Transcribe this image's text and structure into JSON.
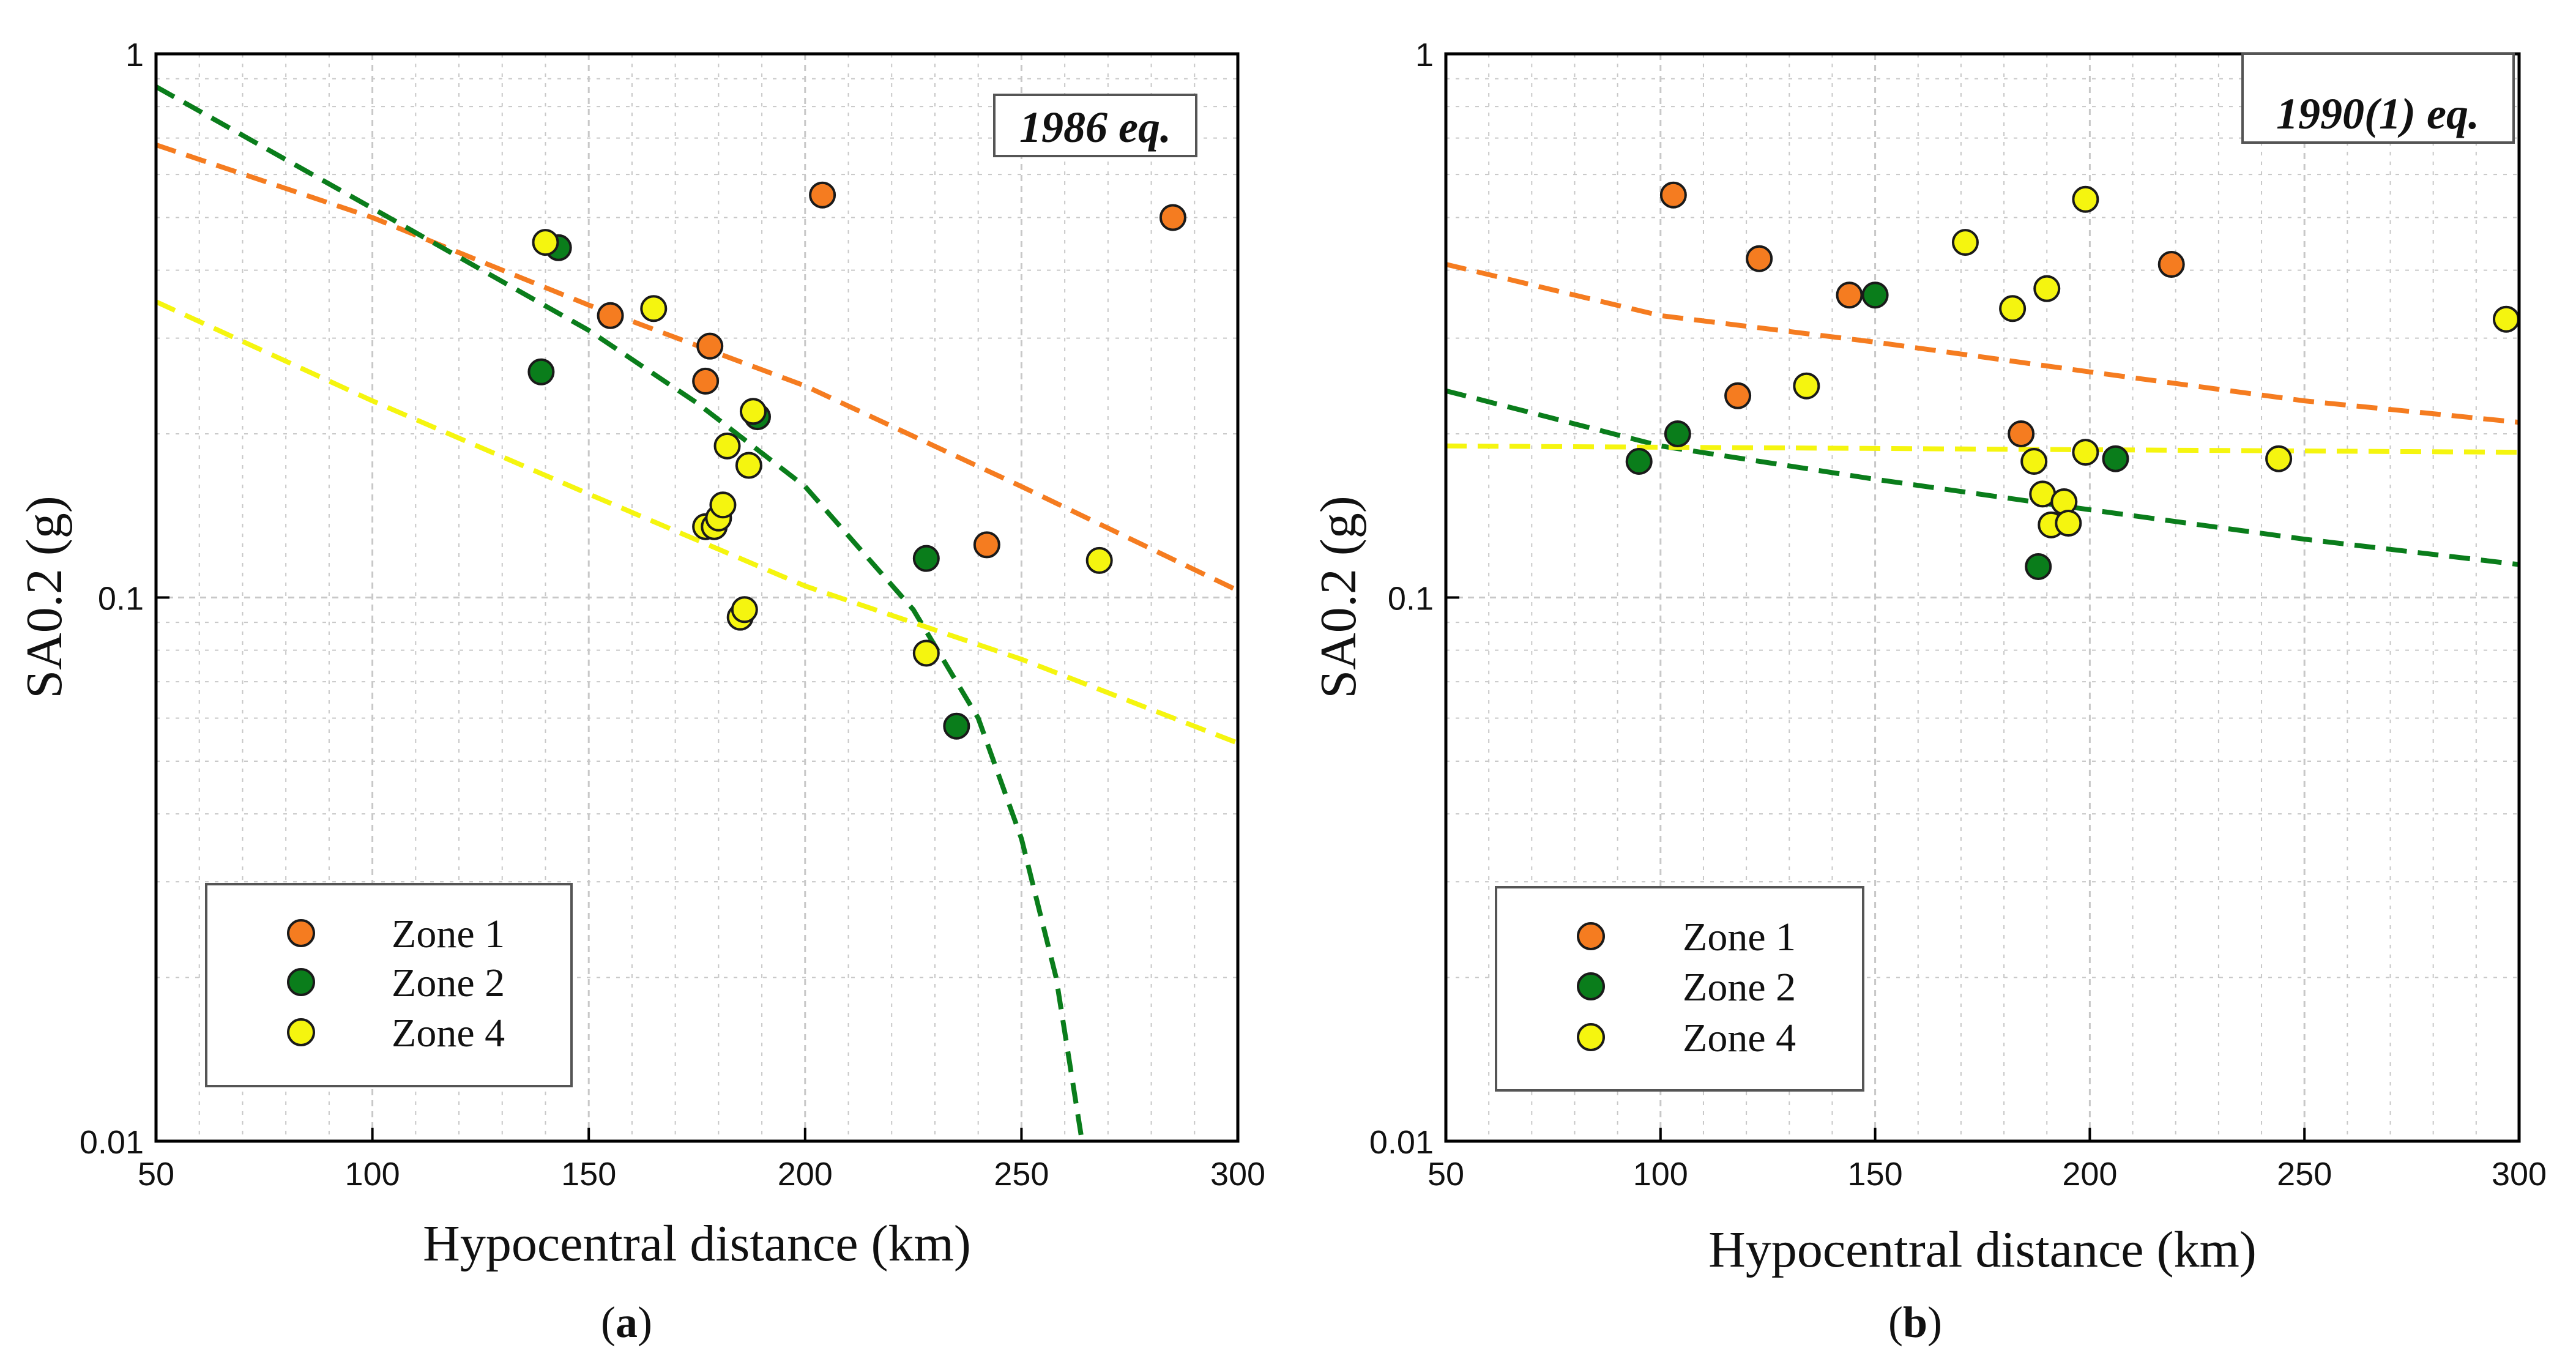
{
  "figure": {
    "colors": {
      "zone1": "#f57c20",
      "zone2": "#0a7d1b",
      "zone4": "#f5f50f",
      "marker_edge": "#1a1a1a",
      "grid": "#c8c8c8"
    }
  },
  "chart_data": [
    {
      "type": "scatter",
      "panel_label": "a",
      "annotation": "1986 eq.",
      "xlabel": "Hypocentral distance (km)",
      "ylabel": "SA0.2 (g)",
      "xlim": [
        50,
        300
      ],
      "ylim": [
        0.01,
        1
      ],
      "yscale": "log",
      "xticks": [
        50,
        100,
        150,
        200,
        250,
        300
      ],
      "yticks": [
        {
          "value": 0.01,
          "label": "0.01"
        },
        {
          "value": 0.1,
          "label": "0.1"
        },
        {
          "value": 1,
          "label": "1"
        }
      ],
      "grid": true,
      "legend_position": "bottom-left",
      "legend": [
        "Zone 1",
        "Zone 2",
        "Zone 4"
      ],
      "series": [
        {
          "name": "Zone 1",
          "color_key": "zone1",
          "x": [
            155,
            178,
            177,
            204,
            242,
            285
          ],
          "y": [
            0.33,
            0.29,
            0.25,
            0.55,
            0.125,
            0.5
          ]
        },
        {
          "name": "Zone 2",
          "color_key": "zone2",
          "x": [
            143,
            139,
            189,
            228,
            235
          ],
          "y": [
            0.44,
            0.26,
            0.215,
            0.118,
            0.058
          ]
        },
        {
          "name": "Zone 4",
          "color_key": "zone4",
          "x": [
            140,
            165,
            182,
            187,
            188,
            177,
            179,
            180,
            181,
            185,
            186,
            228,
            268
          ],
          "y": [
            0.45,
            0.34,
            0.19,
            0.175,
            0.22,
            0.135,
            0.135,
            0.14,
            0.148,
            0.092,
            0.095,
            0.079,
            0.117
          ]
        }
      ],
      "curves": [
        {
          "name": "Zone 1 model",
          "color_key": "zone1",
          "x": [
            50,
            100,
            150,
            200,
            250,
            300
          ],
          "y": [
            0.68,
            0.5,
            0.345,
            0.245,
            0.16,
            0.103
          ]
        },
        {
          "name": "Zone 2 model",
          "color_key": "zone2",
          "x": [
            50,
            100,
            150,
            175,
            200,
            225,
            240,
            250,
            258,
            264
          ],
          "y": [
            0.87,
            0.52,
            0.31,
            0.228,
            0.16,
            0.095,
            0.06,
            0.036,
            0.02,
            0.01
          ]
        },
        {
          "name": "Zone 4 model",
          "color_key": "zone4",
          "x": [
            50,
            100,
            150,
            200,
            250,
            300
          ],
          "y": [
            0.35,
            0.23,
            0.155,
            0.105,
            0.077,
            0.054
          ]
        }
      ]
    },
    {
      "type": "scatter",
      "panel_label": "b",
      "annotation": "1990(1) eq.",
      "xlabel": "Hypocentral distance (km)",
      "ylabel": "SA0.2 (g)",
      "xlim": [
        50,
        300
      ],
      "ylim": [
        0.01,
        1
      ],
      "yscale": "log",
      "xticks": [
        50,
        100,
        150,
        200,
        250,
        300
      ],
      "yticks": [
        {
          "value": 0.01,
          "label": "0.01"
        },
        {
          "value": 0.1,
          "label": "0.1"
        },
        {
          "value": 1,
          "label": "1"
        }
      ],
      "grid": true,
      "legend_position": "bottom-left",
      "legend": [
        "Zone 1",
        "Zone 2",
        "Zone 4"
      ],
      "series": [
        {
          "name": "Zone 1",
          "color_key": "zone1",
          "x": [
            103,
            123,
            144,
            118,
            184,
            219
          ],
          "y": [
            0.55,
            0.42,
            0.36,
            0.235,
            0.2,
            0.41
          ]
        },
        {
          "name": "Zone 2",
          "color_key": "zone2",
          "x": [
            150,
            104,
            95,
            206,
            188
          ],
          "y": [
            0.36,
            0.2,
            0.178,
            0.18,
            0.114
          ]
        },
        {
          "name": "Zone 4",
          "color_key": "zone4",
          "x": [
            171,
            182,
            190,
            199,
            134,
            187,
            189,
            199,
            194,
            191,
            195,
            244,
            297
          ],
          "y": [
            0.45,
            0.34,
            0.37,
            0.54,
            0.245,
            0.178,
            0.155,
            0.185,
            0.15,
            0.136,
            0.137,
            0.18,
            0.325
          ]
        }
      ],
      "curves": [
        {
          "name": "Zone 1 model",
          "color_key": "zone1",
          "x": [
            50,
            100,
            150,
            200,
            250,
            300
          ],
          "y": [
            0.41,
            0.33,
            0.295,
            0.26,
            0.23,
            0.21
          ]
        },
        {
          "name": "Zone 2 model",
          "color_key": "zone2",
          "x": [
            50,
            100,
            150,
            200,
            250,
            300
          ],
          "y": [
            0.24,
            0.19,
            0.165,
            0.145,
            0.128,
            0.115
          ]
        },
        {
          "name": "Zone 4 model",
          "color_key": "zone4",
          "x": [
            50,
            100,
            150,
            200,
            250,
            300
          ],
          "y": [
            0.19,
            0.189,
            0.188,
            0.187,
            0.186,
            0.185
          ]
        }
      ]
    }
  ]
}
